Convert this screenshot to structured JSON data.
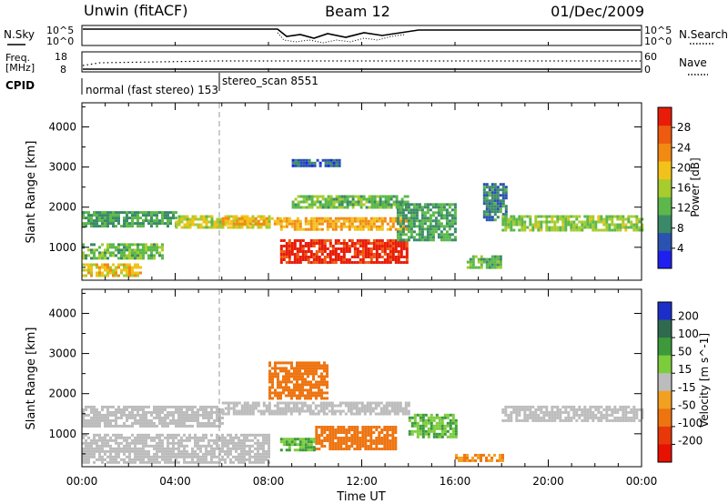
{
  "header": {
    "station": "Unwin (fitACF)",
    "beam": "Beam 12",
    "date": "01/Dec/2009"
  },
  "params": {
    "nsky_label": "N.Sky",
    "nsky_ticks": [
      "10^5",
      "10^0"
    ],
    "nsearch_label": "N.Search",
    "nsearch_ticks": [
      "10^5",
      "10^0"
    ],
    "freq_label_1": "Freq.",
    "freq_label_2": "[MHz]",
    "freq_ticks": [
      "18",
      "8"
    ],
    "nave_label": "Nave",
    "nave_ticks": [
      "60",
      "0"
    ],
    "cpid_label": "CPID",
    "cpid_segments": [
      {
        "label": "normal (fast stereo) 153",
        "start_hour": 0
      },
      {
        "label": "stereo_scan 8551",
        "start_hour": 6
      }
    ]
  },
  "axes": {
    "ylabel": "Slant Range [km]",
    "yticks": [
      1000,
      2000,
      3000,
      4000
    ],
    "ylim": [
      180,
      4600
    ],
    "xlabel": "Time UT",
    "xticks": [
      "00:00",
      "04:00",
      "08:00",
      "12:00",
      "16:00",
      "20:00",
      "00:00"
    ],
    "xlim_hours": [
      0,
      24
    ]
  },
  "colorbars": {
    "power": {
      "label": "Power [dB]",
      "ticks": [
        "4",
        "8",
        "12",
        "16",
        "20",
        "24",
        "28"
      ],
      "colors": [
        "#1f1ff0",
        "#2a52b0",
        "#3a8a68",
        "#5cb84a",
        "#a6cc2e",
        "#f2c21a",
        "#f28a12",
        "#ee5a10",
        "#e81c08"
      ]
    },
    "velocity": {
      "label": "Velocity [m s^-1]",
      "ticks": [
        "200",
        "100",
        "50",
        "15",
        "-15",
        "-50",
        "-100",
        "-200"
      ],
      "colors": [
        "#1c2ec8",
        "#2f6a4e",
        "#3c9a3a",
        "#7ccc3c",
        "#bcbcbc",
        "#f2a020",
        "#ee7410",
        "#e8380a",
        "#e81000"
      ]
    }
  },
  "chart_data": {
    "type": "heatmap",
    "title": "Unwin (fitACF)",
    "xlabel": "Time UT",
    "ylabel": "Slant Range [km]",
    "xlim": [
      0,
      24
    ],
    "ylim": [
      180,
      4600
    ],
    "cpid_change_hour": 6,
    "panels": [
      {
        "name": "Power",
        "colorbar_label": "Power [dB]",
        "regions": [
          {
            "t": [
              0.0,
              4.0
            ],
            "r": [
              1550,
              1900
            ],
            "value": 10
          },
          {
            "t": [
              4.0,
              8.0
            ],
            "r": [
              1500,
              1800
            ],
            "value": 16
          },
          {
            "t": [
              6.0,
              8.5
            ],
            "r": [
              1550,
              1750
            ],
            "value": 20
          },
          {
            "t": [
              8.5,
              14.0
            ],
            "r": [
              1450,
              1750
            ],
            "value": 20
          },
          {
            "t": [
              0.0,
              3.5
            ],
            "r": [
              700,
              1100
            ],
            "value": 12
          },
          {
            "t": [
              0.0,
              2.5
            ],
            "r": [
              300,
              600
            ],
            "value": 18
          },
          {
            "t": [
              8.5,
              14.0
            ],
            "r": [
              650,
              1200
            ],
            "value": 28
          },
          {
            "t": [
              9.0,
              14.0
            ],
            "r": [
              2000,
              2300
            ],
            "value": 12
          },
          {
            "t": [
              9.0,
              11.0
            ],
            "r": [
              3000,
              3200
            ],
            "value": 6
          },
          {
            "t": [
              13.5,
              16.0
            ],
            "r": [
              1200,
              2100
            ],
            "value": 10
          },
          {
            "t": [
              17.2,
              18.2
            ],
            "r": [
              1700,
              2600
            ],
            "value": 8
          },
          {
            "t": [
              18.0,
              24.0
            ],
            "r": [
              1400,
              1800
            ],
            "value": 14
          },
          {
            "t": [
              16.5,
              18.0
            ],
            "r": [
              500,
              800
            ],
            "value": 12
          }
        ]
      },
      {
        "name": "Velocity",
        "colorbar_label": "Velocity [m s^-1]",
        "regions": [
          {
            "t": [
              0.0,
              6.0
            ],
            "r": [
              1200,
              1700
            ],
            "value": 0
          },
          {
            "t": [
              6.0,
              14.0
            ],
            "r": [
              1500,
              1800
            ],
            "value": 0
          },
          {
            "t": [
              0.0,
              8.0
            ],
            "r": [
              300,
              1000
            ],
            "value": 0
          },
          {
            "t": [
              10.0,
              13.5
            ],
            "r": [
              650,
              1200
            ],
            "value": -50
          },
          {
            "t": [
              8.5,
              10.0
            ],
            "r": [
              600,
              900
            ],
            "value": 30
          },
          {
            "t": [
              8.0,
              10.5
            ],
            "r": [
              1900,
              2800
            ],
            "value": -50
          },
          {
            "t": [
              14.0,
              16.0
            ],
            "r": [
              900,
              1500
            ],
            "value": 30
          },
          {
            "t": [
              18.0,
              24.0
            ],
            "r": [
              1300,
              1700
            ],
            "value": 0
          },
          {
            "t": [
              16.0,
              18.0
            ],
            "r": [
              350,
              500
            ],
            "value": -30
          }
        ]
      }
    ]
  }
}
